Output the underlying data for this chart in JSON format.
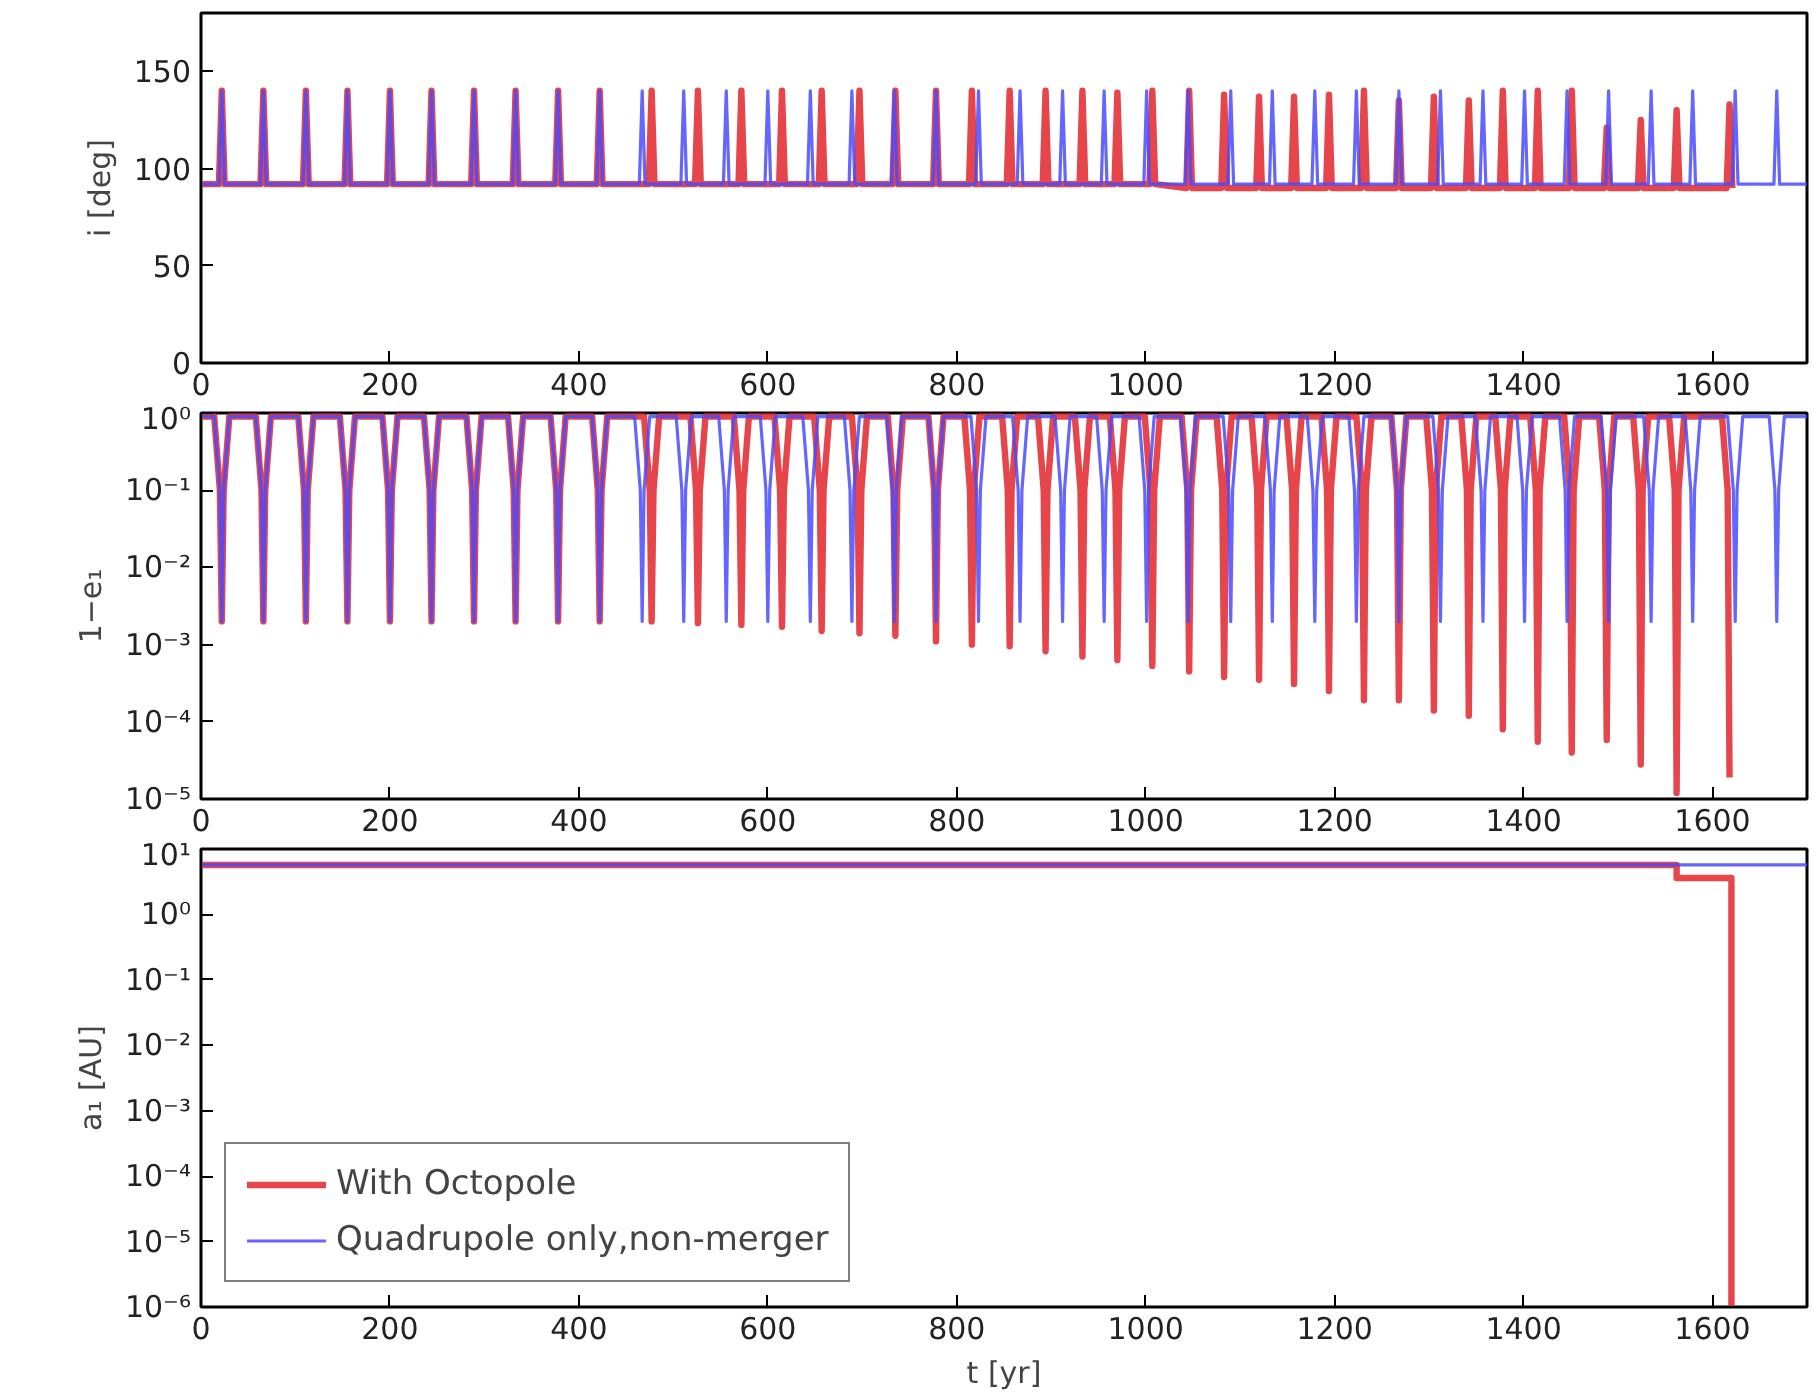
{
  "chart_data": [
    {
      "type": "line",
      "ylabel": "i [deg]",
      "xlim": [
        0,
        1700
      ],
      "xticks": [
        0,
        200,
        400,
        600,
        800,
        1000,
        1200,
        1400,
        1600
      ],
      "ylim": [
        0,
        180
      ],
      "yticks": [
        0,
        50,
        100,
        150
      ],
      "grid": false,
      "series": [
        {
          "color": "#e0242c",
          "x": [
            0,
            19,
            22,
            25,
            63,
            66,
            69,
            108,
            111,
            114,
            152,
            155,
            158,
            197,
            200,
            203,
            241,
            244,
            247,
            286,
            289,
            292,
            330,
            333,
            336,
            375,
            378,
            381,
            419,
            422,
            425,
            474,
            477,
            480,
            523,
            526,
            529,
            569,
            572,
            575,
            612,
            615,
            618,
            654,
            657,
            660,
            694,
            697,
            700,
            732,
            735,
            738,
            775,
            778,
            781,
            813,
            816,
            819,
            853,
            856,
            859,
            891,
            894,
            897,
            930,
            933,
            936,
            967,
            970,
            973,
            1004,
            1007,
            1010,
            1043,
            1046,
            1049,
            1080,
            1083,
            1086,
            1117,
            1120,
            1123,
            1154,
            1157,
            1160,
            1191,
            1194,
            1197,
            1228,
            1231,
            1234,
            1265,
            1268,
            1271,
            1302,
            1305,
            1308,
            1339,
            1342,
            1345,
            1375,
            1378,
            1381,
            1412,
            1415,
            1418,
            1448,
            1451,
            1454,
            1485,
            1488,
            1491,
            1521,
            1524,
            1527,
            1559,
            1562,
            1565,
            1615,
            1618,
            1621
          ],
          "values": [
            92,
            92,
            140,
            92,
            92,
            140,
            92,
            92,
            140,
            92,
            92,
            140,
            92,
            92,
            140,
            92,
            92,
            140,
            92,
            92,
            140,
            92,
            92,
            140,
            92,
            92,
            140,
            92,
            92,
            140,
            92,
            92,
            140,
            92,
            92,
            140,
            92,
            92,
            140,
            92,
            92,
            140,
            92,
            92,
            140,
            92,
            92,
            140,
            92,
            92,
            140,
            92,
            92,
            140,
            92,
            92,
            140,
            92,
            92,
            140,
            92,
            92,
            140,
            92,
            92,
            140,
            92,
            92,
            139,
            92,
            92,
            140,
            92,
            90,
            140,
            90,
            90,
            138,
            90,
            90,
            137,
            90,
            90,
            137,
            90,
            90,
            138,
            90,
            90,
            140,
            90,
            90,
            135,
            90,
            90,
            137,
            90,
            90,
            135,
            90,
            90,
            140,
            90,
            90,
            140,
            90,
            90,
            140,
            90,
            90,
            121,
            90,
            90,
            125,
            90,
            90,
            130,
            90,
            90,
            133,
            90
          ]
        },
        {
          "color": "#4a4aff",
          "x": [
            0,
            19,
            22,
            25,
            63,
            66,
            69,
            108,
            111,
            114,
            152,
            155,
            158,
            197,
            200,
            203,
            241,
            244,
            247,
            286,
            289,
            292,
            330,
            333,
            336,
            375,
            378,
            381,
            419,
            422,
            425,
            464,
            467,
            470,
            508,
            511,
            514,
            553,
            556,
            559,
            597,
            600,
            603,
            642,
            645,
            648,
            686,
            689,
            692,
            731,
            734,
            737,
            775,
            778,
            781,
            820,
            823,
            826,
            864,
            867,
            870,
            909,
            912,
            915,
            953,
            956,
            959,
            998,
            1001,
            1004,
            1042,
            1045,
            1048,
            1087,
            1090,
            1093,
            1131,
            1134,
            1137,
            1176,
            1179,
            1182,
            1220,
            1223,
            1226,
            1265,
            1268,
            1271,
            1309,
            1312,
            1315,
            1354,
            1357,
            1360,
            1398,
            1401,
            1404,
            1443,
            1446,
            1449,
            1487,
            1490,
            1493,
            1532,
            1535,
            1538,
            1576,
            1579,
            1582,
            1621,
            1624,
            1627,
            1665,
            1668,
            1671,
            1700
          ],
          "values": [
            92,
            92,
            140,
            92,
            92,
            140,
            92,
            92,
            140,
            92,
            92,
            140,
            92,
            92,
            140,
            92,
            92,
            140,
            92,
            92,
            140,
            92,
            92,
            140,
            92,
            92,
            140,
            92,
            92,
            140,
            92,
            92,
            140,
            92,
            92,
            140,
            92,
            92,
            140,
            92,
            92,
            140,
            92,
            92,
            140,
            92,
            92,
            140,
            92,
            92,
            140,
            92,
            92,
            140,
            92,
            92,
            140,
            92,
            92,
            140,
            92,
            92,
            140,
            92,
            92,
            140,
            92,
            92,
            140,
            92,
            92,
            140,
            92,
            92,
            140,
            92,
            92,
            140,
            92,
            92,
            140,
            92,
            92,
            140,
            92,
            92,
            140,
            92,
            92,
            140,
            92,
            92,
            140,
            92,
            92,
            140,
            92,
            92,
            140,
            92,
            92,
            140,
            92,
            92,
            140,
            92,
            92,
            140,
            92,
            92,
            140,
            92,
            92,
            140,
            92,
            92
          ]
        }
      ]
    },
    {
      "type": "line",
      "ylabel": "1−e₁",
      "log": "y",
      "xlim": [
        0,
        1700
      ],
      "xticks": [
        0,
        200,
        400,
        600,
        800,
        1000,
        1200,
        1400,
        1600
      ],
      "ylim": [
        1e-05,
        1
      ],
      "yticks": [
        {
          "value": 1e-05,
          "label": "10⁻⁵"
        },
        {
          "value": 0.0001,
          "label": "10⁻⁴"
        },
        {
          "value": 0.001,
          "label": "10⁻³"
        },
        {
          "value": 0.01,
          "label": "10⁻²"
        },
        {
          "value": 0.1,
          "label": "10⁻¹"
        },
        {
          "value": 1,
          "label": "10⁰"
        }
      ],
      "grid": false,
      "series": [
        {
          "color": "#e0242c",
          "x": [
            0,
            14,
            20,
            22,
            24,
            30,
            58,
            64,
            66,
            68,
            74,
            103,
            109,
            111,
            113,
            119,
            147,
            153,
            155,
            157,
            163,
            192,
            198,
            200,
            202,
            208,
            236,
            242,
            244,
            246,
            252,
            281,
            287,
            289,
            291,
            297,
            325,
            331,
            333,
            335,
            341,
            370,
            376,
            378,
            380,
            386,
            414,
            420,
            422,
            424,
            430,
            469,
            475,
            477,
            479,
            485,
            518,
            524,
            526,
            528,
            534,
            564,
            570,
            572,
            574,
            580,
            607,
            613,
            615,
            617,
            623,
            649,
            655,
            657,
            659,
            665,
            689,
            695,
            697,
            699,
            705,
            727,
            733,
            735,
            737,
            743,
            770,
            776,
            778,
            780,
            786,
            808,
            814,
            816,
            818,
            824,
            848,
            854,
            856,
            858,
            864,
            886,
            892,
            894,
            896,
            902,
            925,
            931,
            933,
            935,
            941,
            962,
            968,
            970,
            972,
            978,
            999,
            1005,
            1007,
            1009,
            1015,
            1038,
            1044,
            1046,
            1048,
            1054,
            1075,
            1081,
            1083,
            1085,
            1091,
            1112,
            1118,
            1120,
            1122,
            1128,
            1149,
            1155,
            1157,
            1159,
            1165,
            1186,
            1192,
            1194,
            1196,
            1202,
            1223,
            1229,
            1231,
            1233,
            1239,
            1260,
            1266,
            1268,
            1270,
            1276,
            1297,
            1303,
            1305,
            1307,
            1313,
            1334,
            1340,
            1342,
            1344,
            1350,
            1370,
            1376,
            1378,
            1380,
            1386,
            1407,
            1413,
            1415,
            1417,
            1423,
            1443,
            1449,
            1451,
            1453,
            1459,
            1480,
            1486,
            1488,
            1490,
            1496,
            1516,
            1522,
            1524,
            1526,
            1532,
            1554,
            1560,
            1562,
            1564,
            1570,
            1610,
            1616,
            1618
          ],
          "values": [
            0.9,
            0.9,
            0.1,
            0.002,
            0.1,
            0.9,
            0.9,
            0.1,
            0.002,
            0.1,
            0.9,
            0.9,
            0.1,
            0.002,
            0.1,
            0.9,
            0.9,
            0.1,
            0.002,
            0.1,
            0.9,
            0.9,
            0.1,
            0.002,
            0.1,
            0.9,
            0.9,
            0.1,
            0.002,
            0.1,
            0.9,
            0.9,
            0.1,
            0.002,
            0.1,
            0.9,
            0.9,
            0.1,
            0.002,
            0.1,
            0.9,
            0.9,
            0.1,
            0.002,
            0.1,
            0.9,
            0.9,
            0.1,
            0.002,
            0.1,
            0.9,
            0.9,
            0.1,
            0.002,
            0.1,
            0.9,
            0.9,
            0.1,
            0.0019,
            0.1,
            0.9,
            0.9,
            0.1,
            0.0018,
            0.1,
            0.9,
            0.9,
            0.1,
            0.0017,
            0.1,
            0.9,
            0.9,
            0.1,
            0.0015,
            0.1,
            0.9,
            0.9,
            0.1,
            0.0014,
            0.1,
            0.9,
            0.9,
            0.1,
            0.0013,
            0.1,
            0.9,
            0.9,
            0.1,
            0.0011,
            0.1,
            0.9,
            0.9,
            0.1,
            0.001,
            0.1,
            0.9,
            0.9,
            0.1,
            0.00095,
            0.1,
            0.9,
            0.9,
            0.1,
            0.00082,
            0.1,
            0.9,
            0.9,
            0.1,
            0.0007,
            0.1,
            0.9,
            0.9,
            0.1,
            0.00063,
            0.1,
            0.9,
            0.9,
            0.1,
            0.00053,
            0.1,
            0.9,
            0.9,
            0.1,
            0.00045,
            0.1,
            0.9,
            0.9,
            0.1,
            0.00038,
            0.1,
            0.9,
            0.9,
            0.1,
            0.00035,
            0.1,
            0.9,
            0.9,
            0.1,
            0.00031,
            0.1,
            0.9,
            0.9,
            0.1,
            0.00025,
            0.1,
            0.9,
            0.9,
            0.1,
            0.00019,
            0.1,
            0.9,
            0.9,
            0.1,
            0.00019,
            0.1,
            0.9,
            0.9,
            0.1,
            0.00014,
            0.1,
            0.9,
            0.9,
            0.1,
            0.00012,
            0.1,
            0.9,
            0.9,
            0.1,
            8e-05,
            0.1,
            0.9,
            0.9,
            0.1,
            5.5e-05,
            0.1,
            0.9,
            0.9,
            0.1,
            4e-05,
            0.1,
            0.9,
            0.9,
            0.1,
            5.8e-05,
            0.1,
            0.9,
            0.9,
            0.1,
            2.8e-05,
            0.1,
            0.9,
            0.9,
            0.1,
            1.2e-05,
            0.1,
            0.9,
            0.9,
            0.1,
            1.9e-05
          ]
        },
        {
          "color": "#4a4aff",
          "x": [
            0,
            14,
            20,
            22,
            24,
            30,
            58,
            64,
            66,
            68,
            74,
            103,
            109,
            111,
            113,
            119,
            147,
            153,
            155,
            157,
            163,
            192,
            198,
            200,
            202,
            208,
            236,
            242,
            244,
            246,
            252,
            281,
            287,
            289,
            291,
            297,
            325,
            331,
            333,
            335,
            341,
            370,
            376,
            378,
            380,
            386,
            414,
            420,
            422,
            424,
            430,
            459,
            465,
            467,
            469,
            475,
            503,
            509,
            511,
            513,
            519,
            548,
            554,
            556,
            558,
            564,
            592,
            598,
            600,
            602,
            608,
            637,
            643,
            645,
            647,
            653,
            681,
            687,
            689,
            691,
            697,
            726,
            732,
            734,
            736,
            742,
            770,
            776,
            778,
            780,
            786,
            815,
            821,
            823,
            825,
            831,
            859,
            865,
            867,
            869,
            875,
            904,
            910,
            912,
            914,
            920,
            948,
            954,
            956,
            958,
            964,
            993,
            999,
            1001,
            1003,
            1009,
            1037,
            1043,
            1045,
            1047,
            1053,
            1082,
            1088,
            1090,
            1092,
            1098,
            1126,
            1132,
            1134,
            1136,
            1142,
            1171,
            1177,
            1179,
            1181,
            1187,
            1215,
            1221,
            1223,
            1225,
            1231,
            1260,
            1266,
            1268,
            1270,
            1276,
            1304,
            1310,
            1312,
            1314,
            1320,
            1349,
            1355,
            1357,
            1359,
            1365,
            1393,
            1399,
            1401,
            1403,
            1409,
            1438,
            1444,
            1446,
            1448,
            1454,
            1482,
            1488,
            1490,
            1492,
            1498,
            1527,
            1533,
            1535,
            1537,
            1543,
            1571,
            1577,
            1579,
            1581,
            1587,
            1616,
            1622,
            1624,
            1626,
            1632,
            1660,
            1666,
            1668,
            1670,
            1676,
            1700
          ],
          "values": [
            0.9,
            0.9,
            0.1,
            0.002,
            0.1,
            0.9,
            0.9,
            0.1,
            0.002,
            0.1,
            0.9,
            0.9,
            0.1,
            0.002,
            0.1,
            0.9,
            0.9,
            0.1,
            0.002,
            0.1,
            0.9,
            0.9,
            0.1,
            0.002,
            0.1,
            0.9,
            0.9,
            0.1,
            0.002,
            0.1,
            0.9,
            0.9,
            0.1,
            0.002,
            0.1,
            0.9,
            0.9,
            0.1,
            0.002,
            0.1,
            0.9,
            0.9,
            0.1,
            0.002,
            0.1,
            0.9,
            0.9,
            0.1,
            0.002,
            0.1,
            0.9,
            0.9,
            0.1,
            0.002,
            0.1,
            0.9,
            0.9,
            0.1,
            0.002,
            0.1,
            0.9,
            0.9,
            0.1,
            0.002,
            0.1,
            0.9,
            0.9,
            0.1,
            0.002,
            0.1,
            0.9,
            0.9,
            0.1,
            0.002,
            0.1,
            0.9,
            0.9,
            0.1,
            0.002,
            0.1,
            0.9,
            0.9,
            0.1,
            0.002,
            0.1,
            0.9,
            0.9,
            0.1,
            0.002,
            0.1,
            0.9,
            0.9,
            0.1,
            0.002,
            0.1,
            0.9,
            0.9,
            0.1,
            0.002,
            0.1,
            0.9,
            0.9,
            0.1,
            0.002,
            0.1,
            0.9,
            0.9,
            0.1,
            0.002,
            0.1,
            0.9,
            0.9,
            0.1,
            0.002,
            0.1,
            0.9,
            0.9,
            0.1,
            0.002,
            0.1,
            0.9,
            0.9,
            0.1,
            0.002,
            0.1,
            0.9,
            0.9,
            0.1,
            0.002,
            0.1,
            0.9,
            0.9,
            0.1,
            0.002,
            0.1,
            0.9,
            0.9,
            0.1,
            0.002,
            0.1,
            0.9,
            0.9,
            0.1,
            0.002,
            0.1,
            0.9,
            0.9,
            0.1,
            0.002,
            0.1,
            0.9,
            0.9,
            0.1,
            0.002,
            0.1,
            0.9,
            0.9,
            0.1,
            0.002,
            0.1,
            0.9,
            0.9,
            0.1,
            0.002,
            0.1,
            0.9,
            0.9,
            0.1,
            0.002,
            0.1,
            0.9,
            0.9,
            0.1,
            0.002,
            0.1,
            0.9,
            0.9,
            0.1,
            0.002,
            0.1,
            0.9,
            0.9,
            0.1,
            0.002,
            0.1,
            0.9,
            0.9,
            0.1,
            0.002,
            0.1,
            0.9,
            0.9
          ]
        }
      ]
    },
    {
      "type": "line",
      "xlabel": "t [yr]",
      "ylabel": "a₁ [AU]",
      "log": "y",
      "xlim": [
        0,
        1700
      ],
      "xticks": [
        0,
        200,
        400,
        600,
        800,
        1000,
        1200,
        1400,
        1600
      ],
      "ylim": [
        1e-06,
        10
      ],
      "yticks": [
        {
          "value": 1e-06,
          "label": "10⁻⁶"
        },
        {
          "value": 1e-05,
          "label": "10⁻⁵"
        },
        {
          "value": 0.0001,
          "label": "10⁻⁴"
        },
        {
          "value": 0.001,
          "label": "10⁻³"
        },
        {
          "value": 0.01,
          "label": "10⁻²"
        },
        {
          "value": 0.1,
          "label": "10⁻¹"
        },
        {
          "value": 1,
          "label": "10⁰"
        },
        {
          "value": 10,
          "label": "10¹"
        }
      ],
      "grid": false,
      "legend": "bottom left",
      "series": [
        {
          "name": "With Octopole",
          "color": "#e0242c",
          "x": [
            0,
            1562,
            1562,
            1620,
            1620
          ],
          "values": [
            5.7,
            5.7,
            3.6,
            3.6,
            1e-06
          ]
        },
        {
          "name": "Quadrupole only,non-merger",
          "color": "#4a4aff",
          "x": [
            0,
            1700
          ],
          "values": [
            5.7,
            5.7
          ]
        }
      ]
    }
  ]
}
